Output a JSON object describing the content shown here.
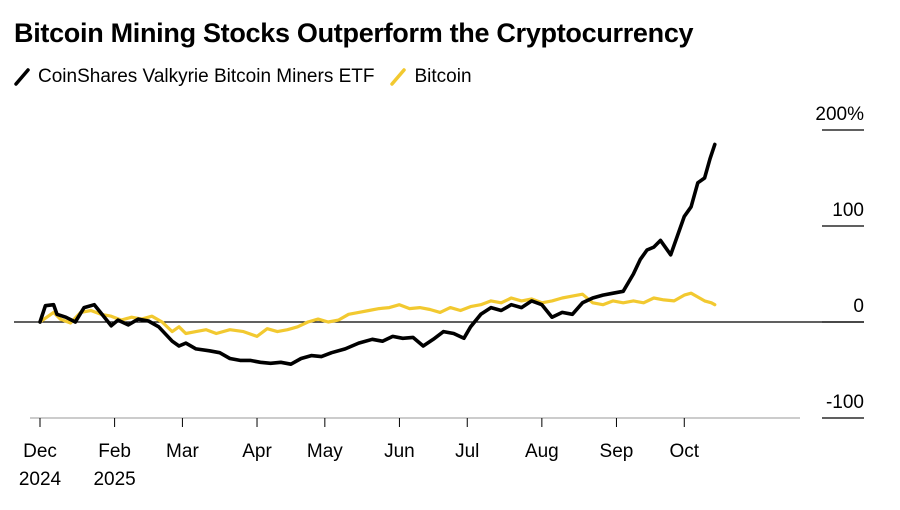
{
  "chart_data": {
    "type": "line",
    "title": "Bitcoin Mining Stocks Outperform the Cryptocurrency",
    "xlabel": "",
    "ylabel": "",
    "y_unit": "%",
    "ylim": [
      -100,
      200
    ],
    "yticks": [
      {
        "value": 200,
        "label": "200%"
      },
      {
        "value": 100,
        "label": "100"
      },
      {
        "value": 0,
        "label": "0"
      },
      {
        "value": -100,
        "label": "-100"
      }
    ],
    "xlim": [
      0,
      11
    ],
    "xticks": [
      {
        "value": 0,
        "label": "Dec",
        "sublabel": "2024"
      },
      {
        "value": 1.1,
        "label": "Feb",
        "sublabel": "2025"
      },
      {
        "value": 2.1,
        "label": "Mar",
        "sublabel": ""
      },
      {
        "value": 3.2,
        "label": "Apr",
        "sublabel": ""
      },
      {
        "value": 4.2,
        "label": "May",
        "sublabel": ""
      },
      {
        "value": 5.3,
        "label": "Jun",
        "sublabel": ""
      },
      {
        "value": 6.3,
        "label": "Jul",
        "sublabel": ""
      },
      {
        "value": 7.4,
        "label": "Aug",
        "sublabel": ""
      },
      {
        "value": 8.5,
        "label": "Sep",
        "sublabel": ""
      },
      {
        "value": 9.5,
        "label": "Oct",
        "sublabel": ""
      }
    ],
    "zero_line": true,
    "legend_position": "top-left",
    "series": [
      {
        "name": "CoinShares Valkyrie Bitcoin Miners ETF",
        "color": "#000000",
        "x": [
          0,
          0.08,
          0.2,
          0.25,
          0.38,
          0.52,
          0.65,
          0.8,
          0.95,
          1.05,
          1.15,
          1.3,
          1.45,
          1.6,
          1.75,
          1.95,
          2.05,
          2.15,
          2.3,
          2.5,
          2.65,
          2.8,
          2.95,
          3.1,
          3.25,
          3.4,
          3.55,
          3.7,
          3.85,
          4.0,
          4.15,
          4.3,
          4.5,
          4.7,
          4.9,
          5.05,
          5.2,
          5.35,
          5.5,
          5.65,
          5.8,
          5.95,
          6.1,
          6.25,
          6.35,
          6.5,
          6.65,
          6.8,
          6.95,
          7.1,
          7.25,
          7.4,
          7.55,
          7.7,
          7.85,
          8.0,
          8.15,
          8.3,
          8.45,
          8.6,
          8.75,
          8.85,
          8.95,
          9.05,
          9.15,
          9.3,
          9.4,
          9.5,
          9.6,
          9.7,
          9.8,
          9.88,
          9.95
        ],
        "values": [
          0,
          17,
          18,
          8,
          5,
          0,
          15,
          18,
          5,
          -4,
          2,
          -3,
          3,
          1,
          -5,
          -20,
          -25,
          -22,
          -28,
          -30,
          -32,
          -38,
          -40,
          -40,
          -42,
          -43,
          -42,
          -44,
          -38,
          -35,
          -36,
          -32,
          -28,
          -22,
          -18,
          -20,
          -15,
          -17,
          -16,
          -25,
          -18,
          -10,
          -12,
          -17,
          -5,
          8,
          15,
          12,
          18,
          15,
          22,
          18,
          5,
          10,
          8,
          20,
          25,
          28,
          30,
          32,
          50,
          65,
          75,
          78,
          85,
          70,
          90,
          110,
          120,
          145,
          150,
          170,
          185
        ]
      },
      {
        "name": "Bitcoin",
        "color": "#f2c930",
        "x": [
          0,
          0.1,
          0.2,
          0.3,
          0.45,
          0.6,
          0.75,
          0.9,
          1.05,
          1.2,
          1.35,
          1.5,
          1.65,
          1.8,
          1.95,
          2.05,
          2.15,
          2.3,
          2.45,
          2.6,
          2.8,
          3.0,
          3.2,
          3.35,
          3.5,
          3.65,
          3.8,
          3.95,
          4.1,
          4.25,
          4.4,
          4.55,
          4.7,
          4.85,
          5.0,
          5.15,
          5.3,
          5.45,
          5.6,
          5.75,
          5.9,
          6.05,
          6.2,
          6.35,
          6.5,
          6.65,
          6.8,
          6.95,
          7.1,
          7.25,
          7.4,
          7.55,
          7.7,
          7.85,
          8.0,
          8.15,
          8.3,
          8.45,
          8.6,
          8.75,
          8.9,
          9.05,
          9.2,
          9.35,
          9.5,
          9.6,
          9.7,
          9.8,
          9.9,
          9.95
        ],
        "values": [
          0,
          5,
          10,
          3,
          -1,
          10,
          12,
          8,
          6,
          2,
          5,
          3,
          6,
          0,
          -10,
          -5,
          -12,
          -10,
          -8,
          -12,
          -8,
          -10,
          -15,
          -7,
          -10,
          -8,
          -5,
          0,
          3,
          0,
          2,
          8,
          10,
          12,
          14,
          15,
          18,
          14,
          15,
          13,
          10,
          15,
          12,
          16,
          18,
          22,
          20,
          25,
          22,
          24,
          20,
          22,
          25,
          27,
          29,
          20,
          18,
          22,
          20,
          22,
          20,
          25,
          23,
          22,
          28,
          30,
          26,
          22,
          20,
          18
        ]
      }
    ]
  }
}
